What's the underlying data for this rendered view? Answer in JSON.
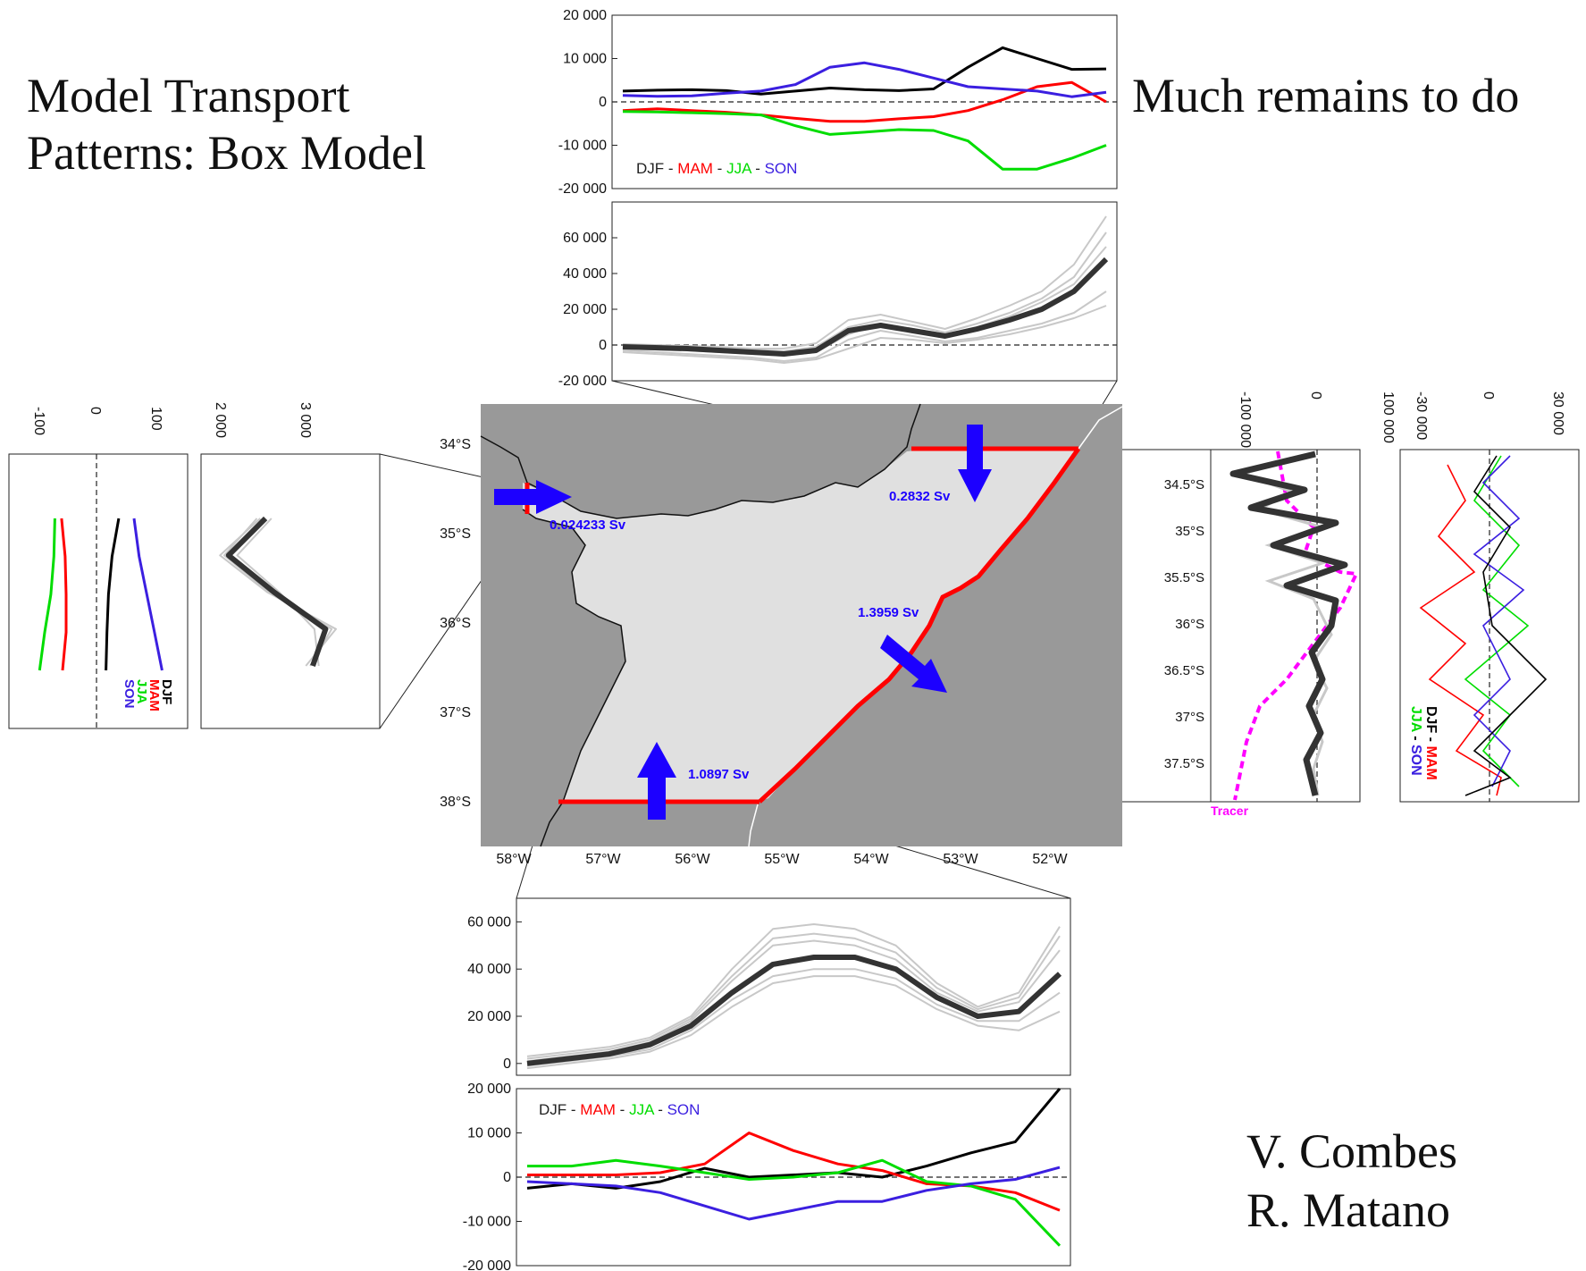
{
  "texts": {
    "title_line1": "Model Transport",
    "title_line2": "Patterns: Box Model",
    "subtitle": "Much remains to do",
    "author1": "V. Combes",
    "author2": "R. Matano"
  },
  "colors": {
    "DJF": "#000000",
    "MAM": "#ff0000",
    "JJA": "#00dd00",
    "SON": "#3b1fe0",
    "ensemble": "#c8c8c8",
    "mean": "#333333",
    "tracer": "#ff00ff",
    "arrow": "#1c00ff",
    "boundary": "#ff0000",
    "ocean": "#999999",
    "shelf": "#e0e0e0"
  },
  "legend": {
    "DJF": "DJF",
    "sep": " - ",
    "MAM": "MAM",
    "JJA": "JJA",
    "SON": "SON"
  },
  "map": {
    "lon_ticks": [
      "58°W",
      "57°W",
      "56°W",
      "55°W",
      "54°W",
      "53°W",
      "52°W"
    ],
    "lat_ticks": [
      "34°S",
      "35°S",
      "36°S",
      "37°S",
      "38°S"
    ],
    "flows": [
      {
        "name": "west",
        "value": "0.024233 Sv"
      },
      {
        "name": "north",
        "value": "0.2832 Sv"
      },
      {
        "name": "east",
        "value": "1.3959 Sv"
      },
      {
        "name": "south",
        "value": "1.0897 Sv"
      }
    ]
  },
  "chart_data": [
    {
      "id": "top-seasonal",
      "type": "line",
      "ylim": [
        -20000,
        20000
      ],
      "yticks": [
        "20 000",
        "10 000",
        "0",
        "-10 000",
        "-20 000"
      ],
      "series": [
        {
          "name": "DJF",
          "values": [
            2500,
            2700,
            2800,
            2600,
            1800,
            2500,
            3200,
            2800,
            2600,
            3000,
            8000,
            12500,
            10000,
            7500,
            7600
          ]
        },
        {
          "name": "MAM",
          "values": [
            -2000,
            -1600,
            -2000,
            -2400,
            -3000,
            -3800,
            -4500,
            -4500,
            -3900,
            -3400,
            -2000,
            500,
            3500,
            4500,
            0
          ]
        },
        {
          "name": "JJA",
          "values": [
            -2200,
            -2300,
            -2500,
            -2700,
            -3000,
            -5500,
            -7500,
            -7000,
            -6400,
            -6600,
            -9000,
            -15500,
            -15500,
            -13000,
            -10000
          ]
        },
        {
          "name": "SON",
          "values": [
            1500,
            1300,
            1400,
            2000,
            2500,
            4000,
            8000,
            9000,
            7500,
            5500,
            3500,
            3000,
            2500,
            1200,
            2200
          ]
        }
      ]
    },
    {
      "id": "top-ensemble",
      "type": "line",
      "ylim": [
        -20000,
        80000
      ],
      "yticks": [
        "60 000",
        "40 000",
        "20 000",
        "0",
        "-20 000"
      ],
      "mean": [
        -1000,
        -1500,
        -2000,
        -3000,
        -4000,
        -5000,
        -3000,
        8000,
        11000,
        8000,
        5000,
        9000,
        14000,
        20000,
        30000,
        48000
      ],
      "ensemble": [
        [
          -3000,
          -4000,
          -5000,
          -6000,
          -7000,
          -9000,
          -7000,
          3000,
          8000,
          5000,
          2000,
          4000,
          8000,
          12000,
          18000,
          30000
        ],
        [
          500,
          0,
          -500,
          -1000,
          -2000,
          -2000,
          1000,
          14000,
          17000,
          13000,
          9000,
          15000,
          22000,
          30000,
          45000,
          72000
        ],
        [
          -2000,
          -2500,
          -3000,
          -4000,
          -5000,
          -6000,
          -4000,
          6000,
          12000,
          9000,
          6000,
          10000,
          16000,
          24000,
          34000,
          55000
        ],
        [
          0,
          -500,
          -1000,
          -1500,
          -2500,
          -3500,
          -1000,
          10000,
          14000,
          11000,
          7000,
          12000,
          18000,
          26000,
          38000,
          63000
        ],
        [
          -4000,
          -5000,
          -6000,
          -7000,
          -8000,
          -10000,
          -8000,
          -2000,
          4000,
          3000,
          1000,
          3000,
          6000,
          10000,
          15000,
          22000
        ]
      ]
    },
    {
      "id": "bottom-ensemble",
      "type": "line",
      "ylim": [
        -5000,
        70000
      ],
      "yticks": [
        "60 000",
        "40 000",
        "20 000",
        "0"
      ],
      "mean": [
        0,
        2000,
        4000,
        8000,
        16000,
        30000,
        42000,
        45000,
        45000,
        40000,
        28000,
        20000,
        22000,
        38000
      ],
      "ensemble": [
        [
          3000,
          5000,
          7000,
          11000,
          20000,
          40000,
          57000,
          59000,
          57000,
          50000,
          34000,
          24000,
          30000,
          58000
        ],
        [
          1000,
          3000,
          5000,
          9000,
          18000,
          35000,
          50000,
          52000,
          50000,
          44000,
          30000,
          22000,
          26000,
          48000
        ],
        [
          -1000,
          1000,
          3000,
          6000,
          14000,
          27000,
          37000,
          40000,
          40000,
          36000,
          25000,
          18000,
          18000,
          30000
        ],
        [
          -2000,
          0,
          2000,
          5000,
          12000,
          24000,
          34000,
          37000,
          37000,
          33000,
          23000,
          16000,
          14000,
          22000
        ],
        [
          2000,
          4000,
          6000,
          10000,
          19000,
          37000,
          53000,
          55000,
          53000,
          47000,
          32000,
          23000,
          28000,
          54000
        ]
      ]
    },
    {
      "id": "bottom-seasonal",
      "type": "line",
      "ylim": [
        -20000,
        20000
      ],
      "yticks": [
        "20 000",
        "10 000",
        "0",
        "-10 000",
        "-20 000"
      ],
      "series": [
        {
          "name": "DJF",
          "values": [
            -2500,
            -1500,
            -2500,
            -1000,
            2000,
            0,
            500,
            1000,
            0,
            2500,
            5500,
            8000,
            20000
          ]
        },
        {
          "name": "MAM",
          "values": [
            500,
            500,
            500,
            1000,
            3000,
            10000,
            6000,
            3000,
            1500,
            -1500,
            -2000,
            -3500,
            -7500
          ]
        },
        {
          "name": "JJA",
          "values": [
            2500,
            2500,
            3800,
            2500,
            1000,
            -500,
            0,
            1000,
            3800,
            -1000,
            -2000,
            -5000,
            -15500
          ]
        },
        {
          "name": "SON",
          "values": [
            -1000,
            -1500,
            -2000,
            -3500,
            -6500,
            -9500,
            -7500,
            -5500,
            -5500,
            -3000,
            -1500,
            -500,
            2200
          ]
        }
      ]
    },
    {
      "id": "left-seasonal",
      "type": "line",
      "orientation": "vertical",
      "xticks": [
        "-100",
        "0",
        "100"
      ],
      "series": [
        {
          "name": "DJF",
          "values": [
            55,
            42,
            35,
            32,
            30
          ]
        },
        {
          "name": "MAM",
          "values": [
            -57,
            -50,
            -48,
            -48,
            -55
          ]
        },
        {
          "name": "JJA",
          "values": [
            -70,
            -72,
            -78,
            -90,
            -100
          ]
        },
        {
          "name": "SON",
          "values": [
            85,
            95,
            110,
            125,
            140
          ]
        }
      ]
    },
    {
      "id": "left-ensemble",
      "type": "line",
      "orientation": "vertical",
      "xticks": [
        "2 000",
        "3 000"
      ],
      "mean": [
        2580,
        2150,
        2680,
        3280,
        3130
      ],
      "ensemble": [
        [
          2520,
          2050,
          2600,
          3400,
          3050
        ],
        [
          2650,
          2250,
          2740,
          3150,
          3200
        ],
        [
          2480,
          2100,
          2620,
          3350,
          3100
        ]
      ]
    },
    {
      "id": "right-ensemble",
      "type": "line",
      "orientation": "vertical",
      "xticks": [
        "-100 000",
        "0",
        "100 000"
      ],
      "ylim": [
        "34.5°S",
        "35°S",
        "35.5°S",
        "36°S",
        "36.5°S",
        "37°S",
        "37.5°S"
      ],
      "tracer_label": "Tracer"
    },
    {
      "id": "right-seasonal",
      "type": "line",
      "orientation": "vertical",
      "xticks": [
        "-30 000",
        "0",
        "30 000"
      ]
    }
  ]
}
